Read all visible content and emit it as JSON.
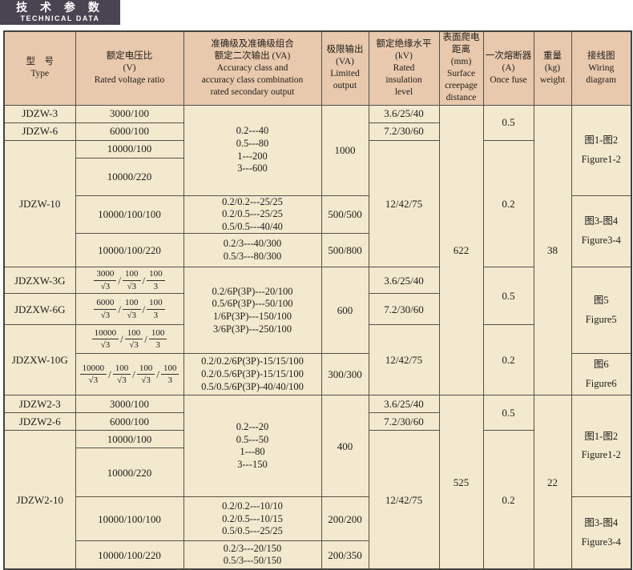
{
  "badge": {
    "title_zh": "技 术 参 数",
    "title_en": "TECHNICAL DATA"
  },
  "colors": {
    "badge_bg": "#4a4351",
    "header_bg": "#e9c9ad",
    "cell_bg": "#f2e9cf",
    "border": "#56504b",
    "text": "#1f1c1a"
  },
  "cols": [
    "型　号\nType",
    "额定电压比\n(V)\nRated voltage ratio",
    "准确级及准确级组合\n额定二次输出 (VA)\nAccuracy class and\naccuracy class combination\nrated secondary output",
    "极限输出\n(VA)\nLimited\noutput",
    "额定绝缘水平\n(kV)\nRated\ninsulation\nlevel",
    "表面爬电距离\n(mm)\nSurface\ncreepage\ndistance",
    "一次熔断器\n(A)\nOnce fuse",
    "重量\n(kg)\nweight",
    "接线图\nWiring\ndiagram"
  ],
  "a": {
    "t1": "JDZW-3",
    "t2": "JDZW-6",
    "t3": "JDZW-10",
    "v1": "3000/100",
    "v2": "6000/100",
    "v3": "10000/100",
    "v4": "10000/220",
    "v5": "10000/100/100",
    "v6": "10000/100/220",
    "acc1": "0.2---40\n0.5---80\n1---200\n3---600",
    "acc2": "0.2/0.2---25/25\n0.2/0.5---25/25\n0.5/0.5---40/40",
    "acc3": "0.2/3---40/300\n0.5/3---80/300",
    "lim1": "1000",
    "lim2": "500/500",
    "lim3": "500/800",
    "ins1": "3.6/25/40",
    "ins2": "7.2/30/60",
    "ins3": "12/42/75",
    "creep": "622",
    "fuse1": "0.5",
    "fuse2": "0.2",
    "weight": "38",
    "wir1": "图1-图2\nFigure1-2",
    "wir2": "图3-图4\nFigure3-4"
  },
  "b": {
    "t1": "JDZXW-3G",
    "t2": "JDZXW-6G",
    "t3": "JDZXW-10G",
    "f1": [
      [
        "3000",
        "√3"
      ],
      [
        "100",
        "√3"
      ],
      [
        "100",
        "3"
      ]
    ],
    "f2": [
      [
        "6000",
        "√3"
      ],
      [
        "100",
        "√3"
      ],
      [
        "100",
        "3"
      ]
    ],
    "f3": [
      [
        "10000",
        "√3"
      ],
      [
        "100",
        "√3"
      ],
      [
        "100",
        "3"
      ]
    ],
    "f4": [
      [
        "10000",
        "√3"
      ],
      [
        "100",
        "√3"
      ],
      [
        "100",
        "√3"
      ],
      [
        "100",
        "3"
      ]
    ],
    "acc1": "0.2/6P(3P)---20/100\n0.5/6P(3P)---50/100\n1/6P(3P)---150/100\n3/6P(3P)---250/100",
    "acc2": "0.2/0.2/6P(3P)-15/15/100\n0.2/0.5/6P(3P)-15/15/100\n0.5/0.5/6P(3P)-40/40/100",
    "lim1": "600",
    "lim2": "300/300",
    "ins1": "3.6/25/40",
    "ins2": "7.2/30/60",
    "ins3": "12/42/75",
    "fuse1": "0.5",
    "fuse2": "0.2",
    "wir1": "图5\nFigure5",
    "wir2": "图6\nFigure6"
  },
  "c": {
    "t1": "JDZW2-3",
    "t2": "JDZW2-6",
    "t3": "JDZW2-10",
    "v1": "3000/100",
    "v2": "6000/100",
    "v3": "10000/100",
    "v4": "10000/220",
    "v5": "10000/100/100",
    "v6": "10000/100/220",
    "acc1": "0.2---20\n0.5---50\n1---80\n3---150",
    "acc2": "0.2/0.2---10/10\n0.2/0.5---10/15\n0.5/0.5---25/25",
    "acc3": "0.2/3---20/150\n0.5/3---50/150",
    "lim1": "400",
    "lim2": "200/200",
    "lim3": "200/350",
    "ins1": "3.6/25/40",
    "ins2": "7.2/30/60",
    "ins3": "12/42/75",
    "creep": "525",
    "fuse1": "0.5",
    "fuse2": "0.2",
    "weight": "22",
    "wir1": "图1-图2\nFigure1-2",
    "wir2": "图3-图4\nFigure3-4"
  }
}
